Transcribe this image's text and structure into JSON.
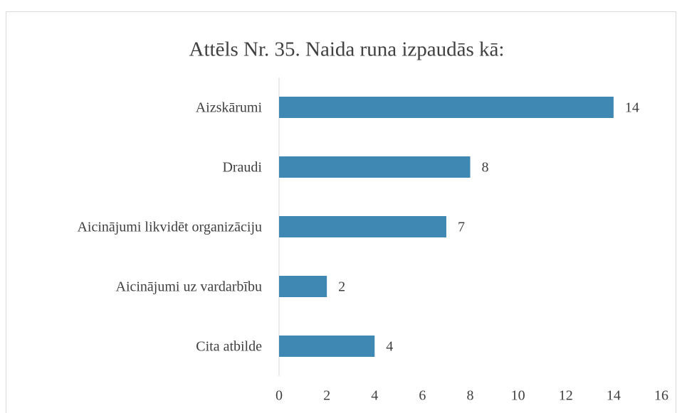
{
  "chart_data": {
    "type": "bar",
    "orientation": "horizontal",
    "title": "Attēls Nr. 35. Naida runa izpaudās kā:",
    "categories": [
      "Aizskārumi",
      "Draudi",
      "Aicinājumi likvidēt organizāciju",
      "Aicinājumi uz vardarbību",
      "Cita atbilde"
    ],
    "values": [
      14,
      8,
      7,
      2,
      4
    ],
    "color": "#3f88b4",
    "xlim": [
      0,
      16
    ],
    "xticks": [
      0,
      2,
      4,
      6,
      8,
      10,
      12,
      14,
      16
    ],
    "grid": false
  }
}
